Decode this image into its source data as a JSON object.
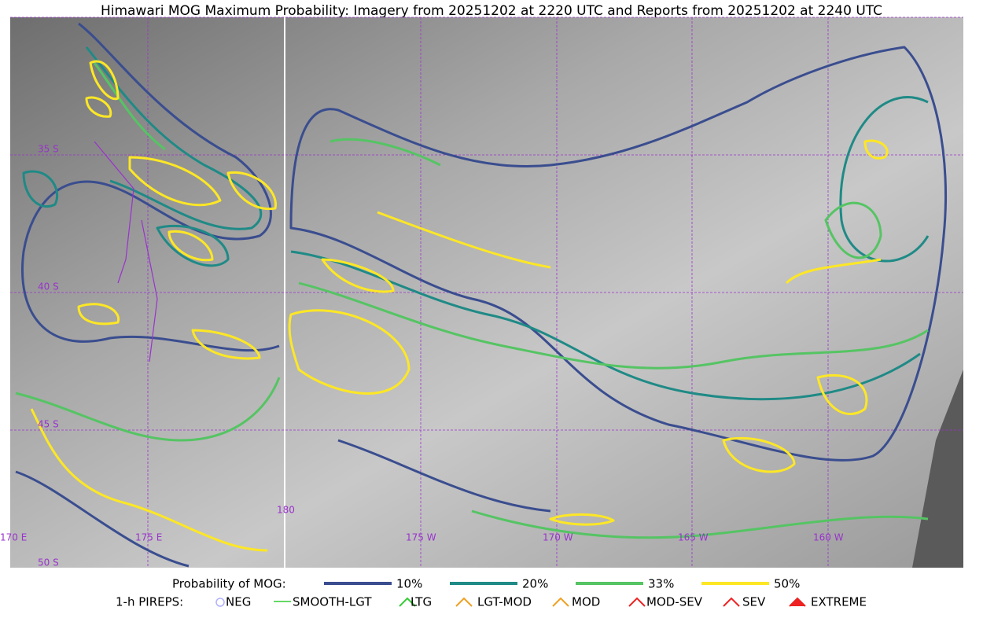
{
  "title": "Himawari MOG Maximum Probability: Imagery from 20251202 at 2220 UTC and Reports from 20251202 at 2240 UTC",
  "map": {
    "lat_labels": [
      "35 S",
      "40 S",
      "45 S",
      "50 S"
    ],
    "lon_labels": [
      "170 E",
      "175 E",
      "180",
      "175 W",
      "170 W",
      "165 W",
      "160 W"
    ]
  },
  "legend": {
    "probability": {
      "label": "Probability of MOG:",
      "items": [
        "10%",
        "20%",
        "33%",
        "50%"
      ]
    },
    "pireps": {
      "label": "1-h PIREPS:",
      "items": [
        "NEG",
        "SMOOTH-LGT",
        "LTG",
        "LGT-MOD",
        "MOD",
        "MOD-SEV",
        "SEV",
        "EXTREME"
      ]
    }
  }
}
